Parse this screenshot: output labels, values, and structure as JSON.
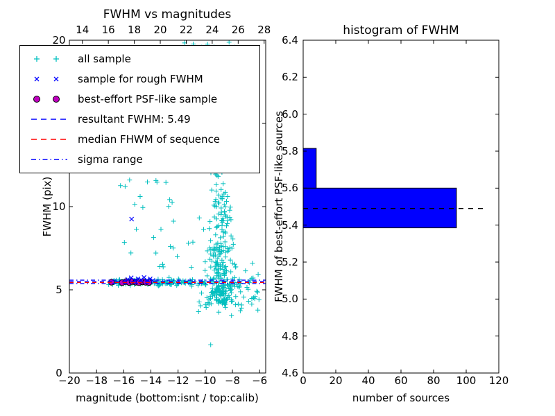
{
  "colors": {
    "cyan": "#00bfbf",
    "blue": "#0000ff",
    "magenta": "#bf00bf",
    "red": "#ff0000",
    "black": "#000000",
    "background": "#ffffff"
  },
  "legend": {
    "items": [
      {
        "label": "all sample",
        "marker": "plus2",
        "color": "#00bfbf"
      },
      {
        "label": "sample for rough FWHM",
        "marker": "x2",
        "color": "#0000ff"
      },
      {
        "label": "best-effort PSF-like sample",
        "marker": "dot2",
        "color": "#bf00bf",
        "edge": "#000000"
      },
      {
        "label": "resultant FWHM: 5.49",
        "marker": "dash",
        "color": "#0000ff"
      },
      {
        "label": "median FHWM of sequence",
        "marker": "dash",
        "color": "#ff0000"
      },
      {
        "label": "sigma range",
        "marker": "dashdot",
        "color": "#0000ff"
      }
    ]
  },
  "chart_data": [
    {
      "type": "scatter",
      "title": "FWHM vs magnitudes",
      "xlabel": "magnitude (bottom:isnt / top:calib)",
      "ylabel": "FWHM (pix)",
      "xlim": [
        -20,
        -5.55
      ],
      "ylim": [
        0,
        20
      ],
      "top_xlim": [
        13.0,
        28.12
      ],
      "xticks": {
        "values": [
          -20,
          -18,
          -16,
          -14,
          -12,
          -10,
          -8,
          -6
        ],
        "labels": [
          "−20",
          "−18",
          "−16",
          "−14",
          "−12",
          "−10",
          "−8",
          "−6"
        ]
      },
      "top_xticks": {
        "values": [
          14,
          16,
          18,
          20,
          22,
          24,
          26,
          28
        ],
        "labels": [
          "14",
          "16",
          "18",
          "20",
          "22",
          "24",
          "26",
          "28"
        ]
      },
      "yticks": {
        "values": [
          0,
          5,
          10,
          15,
          20
        ],
        "labels": [
          "0",
          "5",
          "10",
          "15",
          "20"
        ]
      },
      "grid": false,
      "legend_position": "upper left",
      "series": [
        {
          "name": "all sample",
          "marker": "plus",
          "color": "#00bfbf",
          "points": [
            [
              -9.6,
              1.7
            ]
          ],
          "clusters": [
            {
              "comment": "horizontal band near FWHM 5.45",
              "count": 150,
              "seed": 101,
              "x": {
                "dist": "uniform",
                "min": -17.2,
                "max": -9.9
              },
              "y": {
                "dist": "normal",
                "mean": 5.45,
                "sd": 0.09,
                "min": 5.1,
                "max": 5.85
              }
            },
            {
              "comment": "dense faint-source column core",
              "count": 240,
              "seed": 202,
              "x": {
                "dist": "normal",
                "mean": -8.95,
                "sd": 0.5,
                "min": -10.4,
                "max": -7.3
              },
              "y": {
                "dist": "exp",
                "offset": 4.1,
                "mean": 2.6,
                "max": 19.9
              }
            },
            {
              "comment": "column mid heights",
              "count": 90,
              "seed": 303,
              "x": {
                "dist": "normal",
                "mean": -8.8,
                "sd": 0.4,
                "min": -9.9,
                "max": -7.6
              },
              "y": {
                "dist": "uniform",
                "min": 7,
                "max": 17
              }
            },
            {
              "comment": "column top plume",
              "count": 30,
              "seed": 404,
              "x": {
                "dist": "normal",
                "mean": -8.7,
                "sd": 0.55,
                "min": -10,
                "max": -7.3
              },
              "y": {
                "dist": "uniform",
                "min": 16,
                "max": 19.9
              }
            },
            {
              "comment": "points clipped at top edge FWHM ~20",
              "count": 12,
              "seed": 505,
              "x": {
                "dist": "uniform",
                "min": -11.7,
                "max": -7.3
              },
              "y": {
                "dist": "uniform",
                "min": 19.4,
                "max": 19.9
              }
            },
            {
              "comment": "sparse spray above band",
              "count": 30,
              "seed": 606,
              "x": {
                "dist": "uniform",
                "min": -16.3,
                "max": -10.4
              },
              "y": {
                "dist": "uniform",
                "min": 5.9,
                "max": 11.8
              }
            },
            {
              "comment": "bright-right sparse tail",
              "count": 42,
              "seed": 707,
              "x": {
                "dist": "uniform",
                "min": -8.3,
                "max": -6.0
              },
              "y": {
                "dist": "normal",
                "mean": 5.1,
                "sd": 0.75,
                "min": 3.4,
                "max": 6.6
              }
            },
            {
              "comment": "below-band stragglers",
              "count": 22,
              "seed": 808,
              "x": {
                "dist": "uniform",
                "min": -10.6,
                "max": -7.2
              },
              "y": {
                "dist": "uniform",
                "min": 3.6,
                "max": 5.1
              }
            }
          ]
        },
        {
          "name": "sample for rough FWHM",
          "marker": "x",
          "color": "#0000ff",
          "points": [
            [
              -15.7,
              5.62
            ],
            [
              -15.45,
              5.72
            ],
            [
              -15.2,
              5.56
            ],
            [
              -14.95,
              5.66
            ],
            [
              -14.72,
              5.6
            ],
            [
              -14.5,
              5.74
            ],
            [
              -14.28,
              5.58
            ],
            [
              -14.05,
              5.66
            ],
            [
              -13.85,
              5.56
            ],
            [
              -15.42,
              9.25
            ]
          ]
        },
        {
          "name": "best-effort PSF-like sample",
          "marker": "circle",
          "color": "#bf00bf",
          "edge": "#000000",
          "points": [
            [
              -16.9,
              5.46
            ],
            [
              -16.12,
              5.43
            ],
            [
              -15.85,
              5.49
            ],
            [
              -15.6,
              5.44
            ],
            [
              -15.38,
              5.5
            ],
            [
              -15.12,
              5.46
            ],
            [
              -14.88,
              5.43
            ],
            [
              -14.62,
              5.48
            ],
            [
              -14.38,
              5.45
            ],
            [
              -14.15,
              5.44
            ]
          ]
        }
      ],
      "lines": [
        {
          "label": "resultant FWHM: 5.49",
          "y": 5.49,
          "color": "#0000ff",
          "style": "dashed"
        },
        {
          "label": "median FHWM of sequence",
          "y": 5.44,
          "color": "#ff0000",
          "style": "dashed"
        },
        {
          "label": "sigma range (upper)",
          "y": 5.58,
          "color": "#0000ff",
          "style": "dashdot"
        },
        {
          "label": "sigma range (lower)",
          "y": 5.37,
          "color": "#0000ff",
          "style": "dashdot"
        }
      ]
    },
    {
      "type": "bar",
      "orientation": "horizontal",
      "title": "histogram of FWHM",
      "xlabel": "number of sources",
      "ylabel": "FWHM of best-effort PSF-like sources",
      "xlim": [
        0,
        120
      ],
      "ylim": [
        4.6,
        6.4
      ],
      "xticks": {
        "values": [
          0,
          20,
          40,
          60,
          80,
          100,
          120
        ],
        "labels": [
          "0",
          "20",
          "40",
          "60",
          "80",
          "100",
          "120"
        ]
      },
      "yticks": {
        "values": [
          4.6,
          4.8,
          5.0,
          5.2,
          5.4,
          5.6,
          5.8,
          6.0,
          6.2,
          6.4
        ],
        "labels": [
          "4.6",
          "4.8",
          "5.0",
          "5.2",
          "5.4",
          "5.6",
          "5.8",
          "6.0",
          "6.2",
          "6.4"
        ]
      },
      "grid": false,
      "bar_color": "#0000ff",
      "edge_color": "#000000",
      "bins": [
        {
          "lo": 5.385,
          "hi": 5.6,
          "count": 94
        },
        {
          "lo": 5.6,
          "hi": 5.815,
          "count": 8
        }
      ],
      "dashed_line": {
        "y": 5.49,
        "x_start": 0,
        "x_end": 111,
        "color": "#000000",
        "style": "dashed"
      }
    }
  ]
}
